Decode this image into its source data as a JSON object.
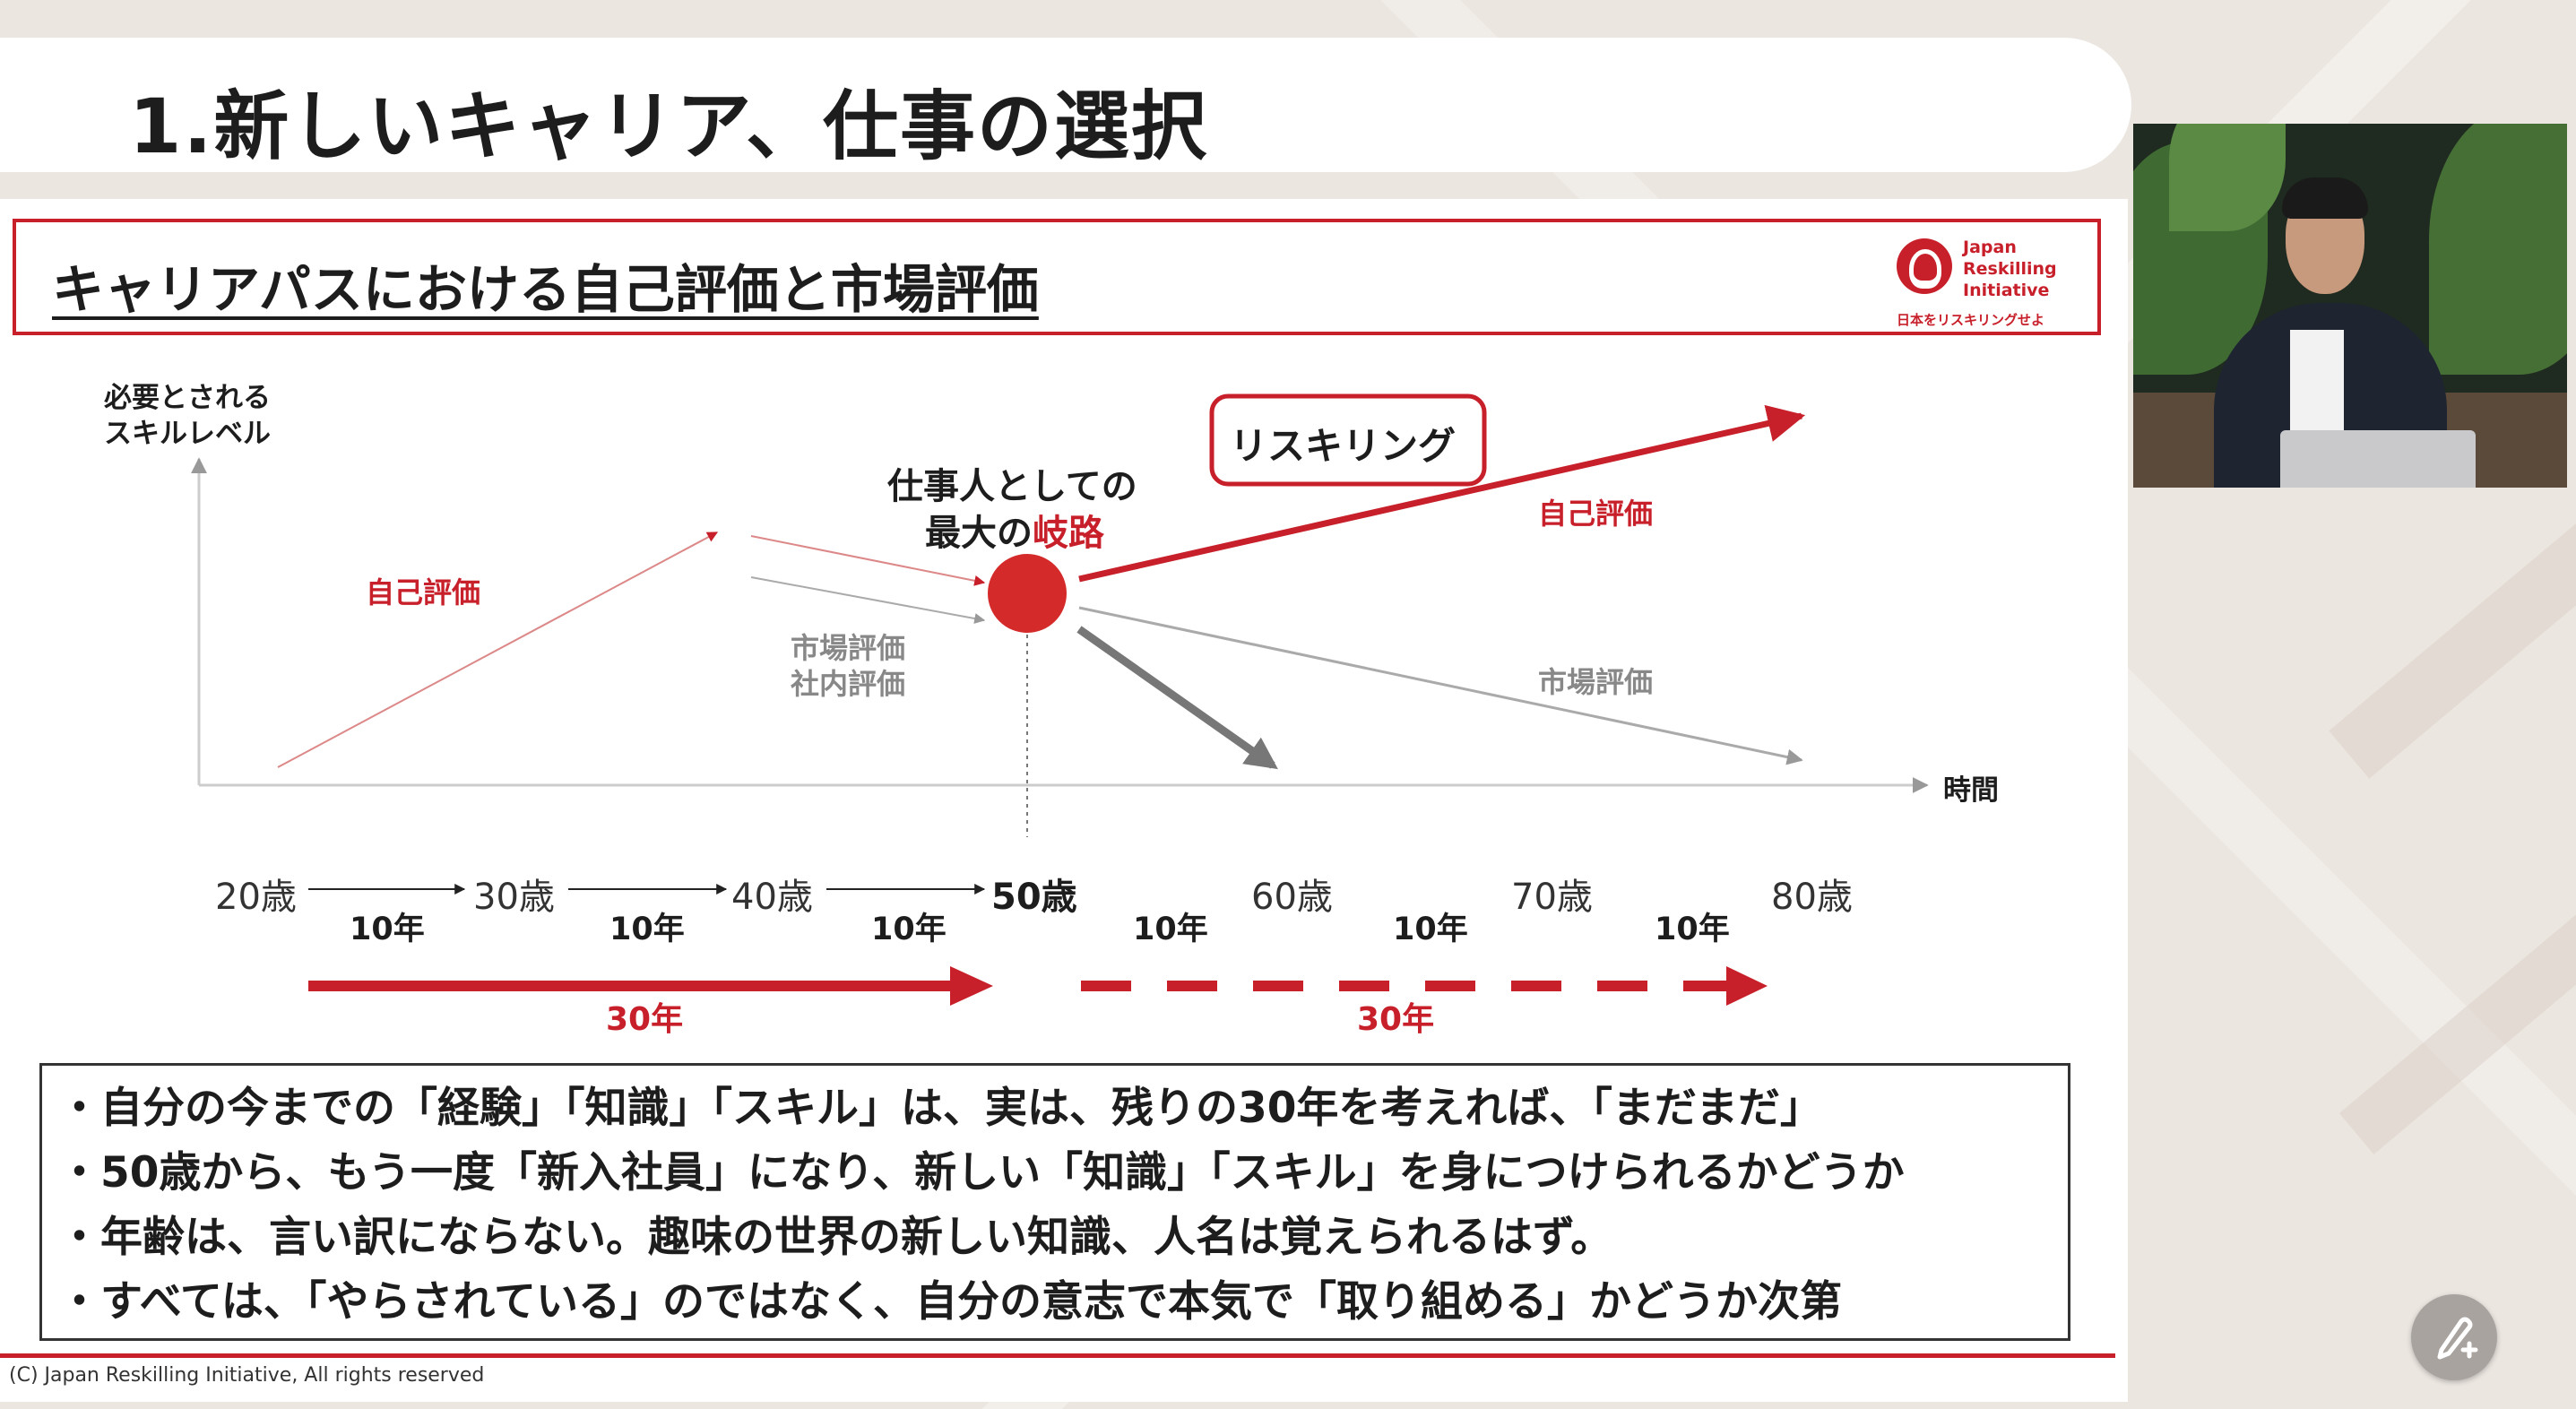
{
  "slide": {
    "title": "1.新しいキャリア、仕事の選択",
    "header": "キャリアパスにおける自己評価と市場評価",
    "logo": {
      "name": "Japan\nReskilling\nInitiative",
      "tagline": "日本をリスキリングせよ"
    },
    "diagram": {
      "y_axis_label_1": "必要とされる",
      "y_axis_label_2": "スキルレベル",
      "x_axis_label": "時間",
      "self_eval_left": "自己評価",
      "market_eval_left": "市場評価",
      "internal_eval_left": "社内評価",
      "crossroad_line1": "仕事人としての",
      "crossroad_line2_prefix": "最大の",
      "crossroad_line2_highlight": "岐路",
      "reskilling_box": "リスキリング",
      "self_eval_right": "自己評価",
      "market_eval_right": "市場評価"
    },
    "timeline": {
      "ages": [
        "20歳",
        "30歳",
        "40歳",
        "50歳",
        "60歳",
        "70歳",
        "80歳"
      ],
      "interval": "10年",
      "span_label": "30年"
    },
    "bullets": [
      "・自分の今までの「経験」「知識」「スキル」は、実は、残りの30年を考えれば、「まだまだ」",
      "・50歳から、もう一度「新入社員」になり、新しい「知識」「スキル」を身につけられるかどうか",
      "・年齢は、言い訳にならない。趣味の世界の新しい知識、人名は覚えられるはず。",
      "・すべては、「やらされている」のではなく、自分の意志で本気で「取り組める」かどうか次第"
    ],
    "footer": "(C) Japan Reskilling Initiative, All rights reserved"
  },
  "colors": {
    "accent": "#c8202a",
    "gray": "#888888"
  },
  "icons": {
    "fab": "pen-plus-icon"
  }
}
